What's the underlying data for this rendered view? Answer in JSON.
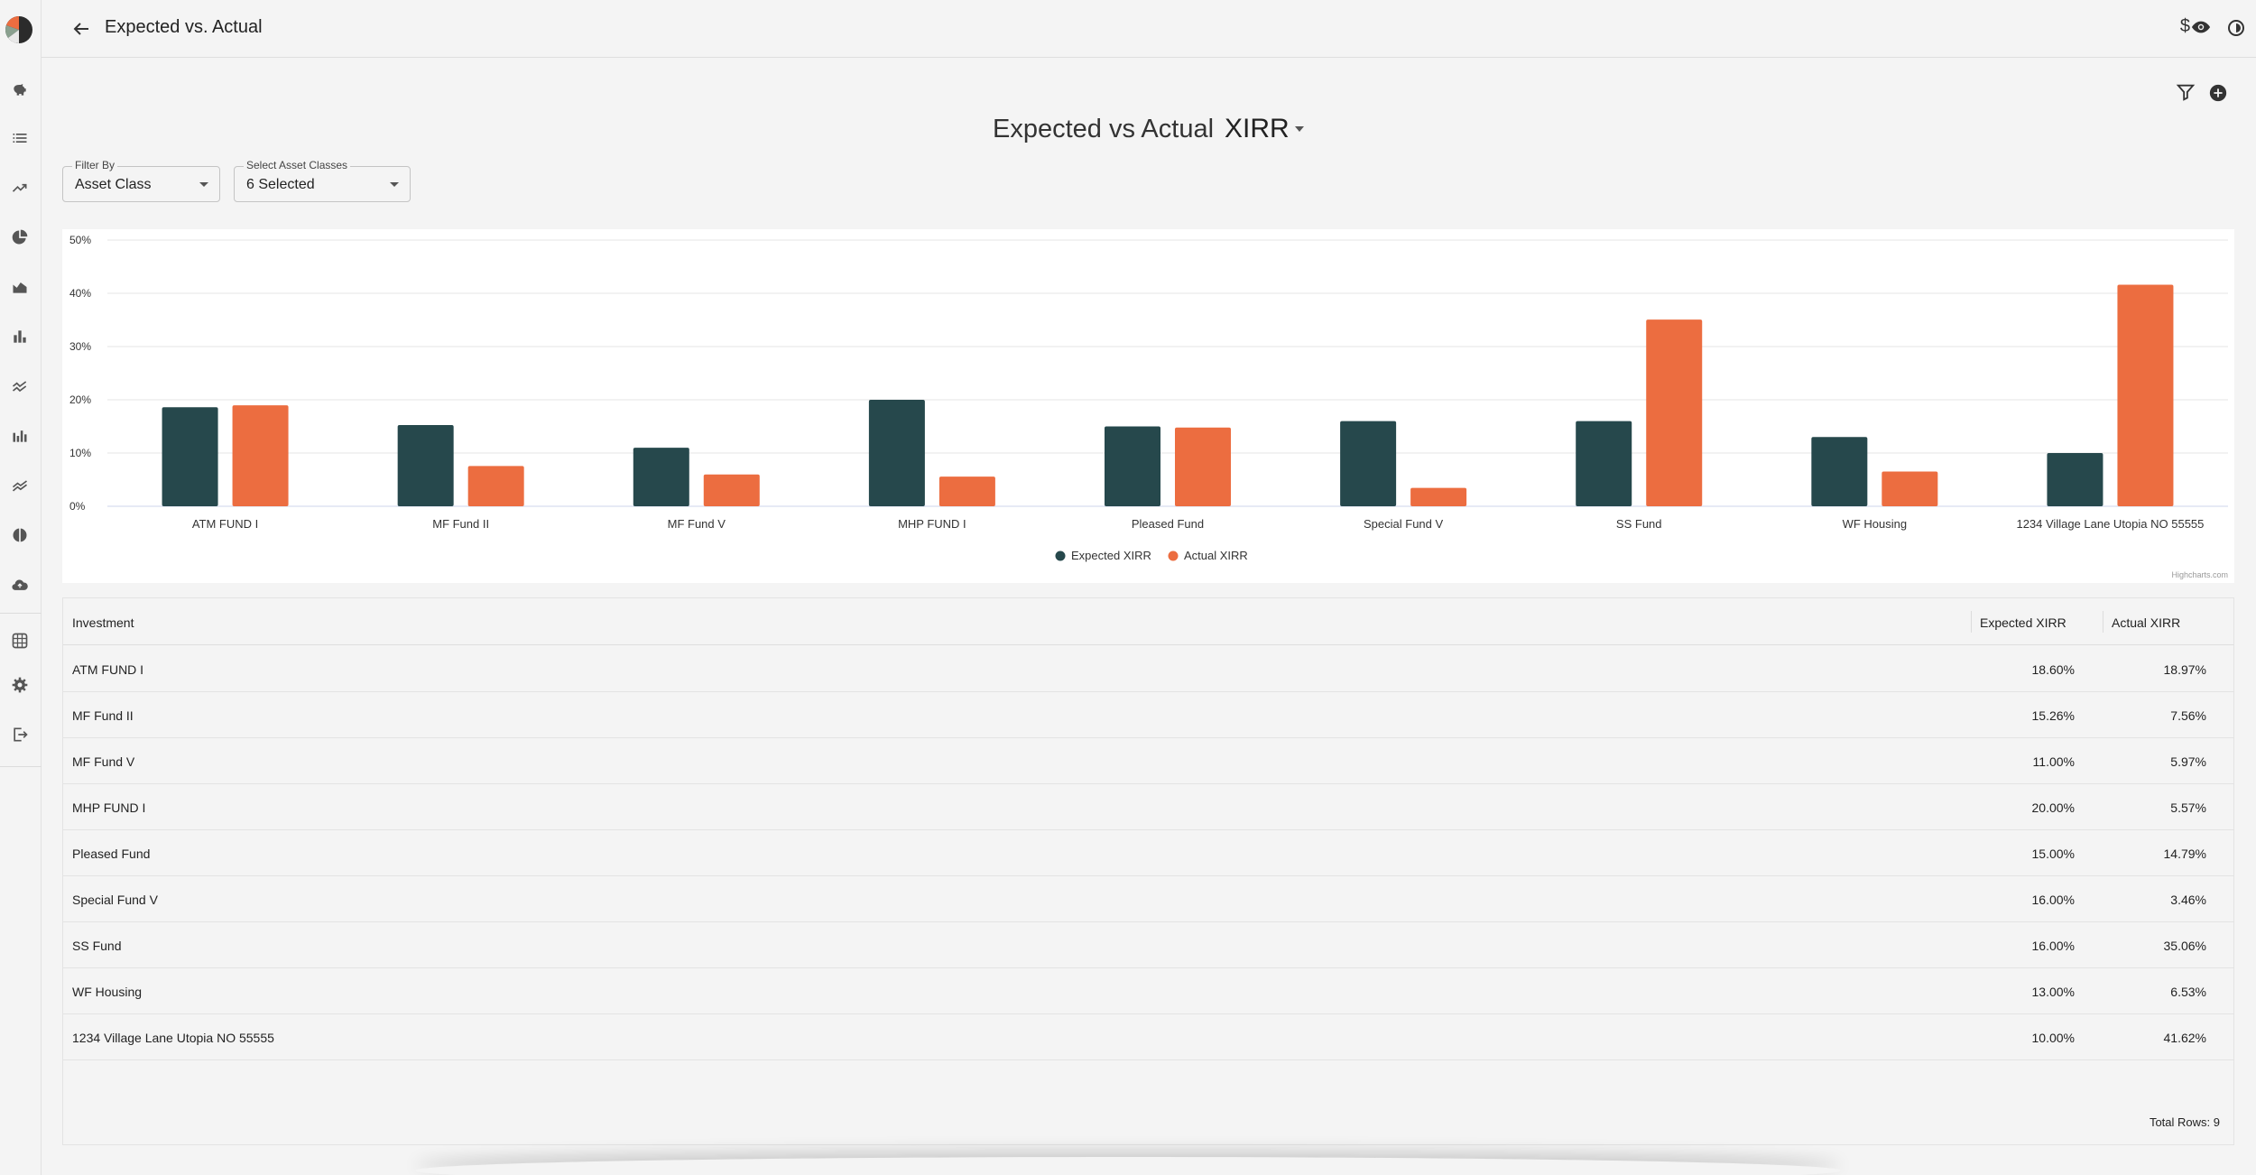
{
  "header": {
    "title": "Expected vs. Actual",
    "currency_symbol": "$"
  },
  "chart_heading": {
    "prefix": "Expected vs Actual",
    "metric": "XIRR"
  },
  "filters": {
    "filter_by": {
      "label": "Filter By",
      "value": "Asset Class"
    },
    "asset_classes": {
      "label": "Select Asset Classes",
      "value": "6 Selected"
    }
  },
  "colors": {
    "expected": "#26484c",
    "actual": "#ec6d40",
    "grid": "#e6e6e6"
  },
  "sidebar": {
    "icons": [
      "piggy-bank-icon",
      "list-icon",
      "trending-up-icon",
      "pie-chart-icon",
      "area-chart-icon",
      "bar-chart-icon",
      "multiline-chart-icon",
      "stacked-bar-icon",
      "stacked-line-icon",
      "half-circle-icon",
      "cloud-upload-icon",
      "grid-pattern-icon",
      "gear-icon",
      "logout-icon"
    ]
  },
  "chart_data": {
    "type": "bar",
    "categories": [
      "ATM FUND I",
      "MF Fund II",
      "MF Fund V",
      "MHP FUND I",
      "Pleased Fund",
      "Special Fund V",
      "SS Fund",
      "WF Housing",
      "1234 Village Lane Utopia NO 55555"
    ],
    "series": [
      {
        "name": "Expected XIRR",
        "values": [
          18.6,
          15.26,
          11.0,
          20.0,
          15.0,
          16.0,
          16.0,
          13.0,
          10.0
        ]
      },
      {
        "name": "Actual XIRR",
        "values": [
          18.97,
          7.56,
          5.97,
          5.57,
          14.79,
          3.46,
          35.06,
          6.53,
          41.62
        ]
      }
    ],
    "yticks": [
      "0%",
      "10%",
      "20%",
      "30%",
      "40%",
      "50%"
    ],
    "ylim": [
      0,
      50
    ],
    "grid": true,
    "legend": "bottom-center",
    "credits": "Highcharts.com"
  },
  "table": {
    "columns": {
      "investment": "Investment",
      "expected": "Expected XIRR",
      "actual": "Actual XIRR"
    },
    "rows": [
      {
        "name": "ATM FUND I",
        "expected": "18.60%",
        "actual": "18.97%"
      },
      {
        "name": "MF Fund II",
        "expected": "15.26%",
        "actual": "7.56%"
      },
      {
        "name": "MF Fund V",
        "expected": "11.00%",
        "actual": "5.97%"
      },
      {
        "name": "MHP FUND I",
        "expected": "20.00%",
        "actual": "5.57%"
      },
      {
        "name": "Pleased Fund",
        "expected": "15.00%",
        "actual": "14.79%"
      },
      {
        "name": "Special Fund V",
        "expected": "16.00%",
        "actual": "3.46%"
      },
      {
        "name": "SS Fund",
        "expected": "16.00%",
        "actual": "35.06%"
      },
      {
        "name": "WF Housing",
        "expected": "13.00%",
        "actual": "6.53%"
      },
      {
        "name": "1234 Village Lane Utopia NO 55555",
        "expected": "10.00%",
        "actual": "41.62%"
      }
    ],
    "footer": "Total Rows: 9"
  }
}
